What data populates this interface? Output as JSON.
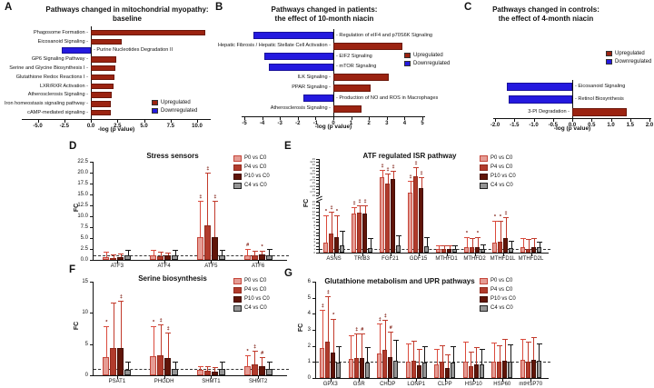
{
  "figure_colors": {
    "upregulated": "#9B2311",
    "downregulated": "#2419DF",
    "series": [
      {
        "name": "P0 vs C0",
        "fill": "#E59C94",
        "border": "#C5463A",
        "err": "#DB4A3C"
      },
      {
        "name": "P4 vs C0",
        "fill": "#B13B2C",
        "border": "#922B1E",
        "err": "#C23A2B"
      },
      {
        "name": "P10 vs C0",
        "fill": "#601509",
        "border": "#430E05",
        "err": "#C23A2B"
      },
      {
        "name": "C4 vs C0",
        "fill": "#959595",
        "border": "#222222",
        "err": "#141414"
      }
    ],
    "sig_marker": "#7A150A"
  },
  "chart_data": [
    {
      "id": "A",
      "panel_letter": "A",
      "type": "bar",
      "orientation": "horizontal",
      "title_lines": [
        "Pathways changed in mitochondrial myopathy:",
        "baseline"
      ],
      "xlabel": "-log (p value)",
      "x_tick_values": [
        -5.0,
        -2.5,
        0.0,
        2.5,
        5.0,
        7.5,
        10.0
      ],
      "x_tick_labels": [
        "-5.0",
        "-2.5",
        "0.0",
        "2.5",
        "5.0",
        "7.5",
        "10.0"
      ],
      "xlim": [
        -6.4,
        11.2
      ],
      "legend": {
        "entries": [
          "Upregulated",
          "Downregulated"
        ]
      },
      "rows": [
        {
          "label": "Phagosome Formation",
          "value": 10.8,
          "direction": "up"
        },
        {
          "label": "Eicosanoid Signaling",
          "value": 2.9,
          "direction": "up"
        },
        {
          "label": "Purine Nucleotides Degradation II",
          "value": -2.7,
          "direction": "down"
        },
        {
          "label": "GP6 Signaling Pathway",
          "value": 2.4,
          "direction": "up"
        },
        {
          "label": "Serine and Glycine Biosynthesis I",
          "value": 2.3,
          "direction": "up"
        },
        {
          "label": "Glutathione Redox Reactions I",
          "value": 2.2,
          "direction": "up"
        },
        {
          "label": "LXR/RXR Activation",
          "value": 2.1,
          "direction": "up"
        },
        {
          "label": "Atherosclerosis Signaling",
          "value": 2.0,
          "direction": "up"
        },
        {
          "label": "Iron homeostasis signaling pathway",
          "value": 1.9,
          "direction": "up"
        },
        {
          "label": "cAMP-mediated signaling",
          "value": 1.9,
          "direction": "up"
        }
      ]
    },
    {
      "id": "B",
      "panel_letter": "B",
      "type": "bar",
      "orientation": "horizontal",
      "title_lines": [
        "Pathways changed in patients:",
        "the effect of 10-month niacin"
      ],
      "xlabel": "-log (p value)",
      "x_tick_values": [
        -5,
        -4,
        -3,
        -2,
        -1,
        0,
        1,
        2,
        3,
        4,
        5
      ],
      "x_tick_labels": [
        "-5",
        "-4",
        "-3",
        "-2",
        "-1",
        "0",
        "1",
        "2",
        "3",
        "4",
        "5"
      ],
      "xlim": [
        -5.2,
        5.2
      ],
      "legend": {
        "entries": [
          "Upregulated",
          "Downregulated"
        ]
      },
      "rows": [
        {
          "label": "Regulation of eIF4 and p70S6K Signaling",
          "value": -4.5,
          "direction": "down"
        },
        {
          "label": "Hepatic Fibrosis / Hepatic Stellate Cell Activation",
          "value": 3.9,
          "direction": "up"
        },
        {
          "label": "EIF2 Signaling",
          "value": -3.9,
          "direction": "down"
        },
        {
          "label": "mTOR Signaling",
          "value": -3.6,
          "direction": "down"
        },
        {
          "label": "ILK Signaling",
          "value": 3.1,
          "direction": "up"
        },
        {
          "label": "PPAR Signaling",
          "value": 2.1,
          "direction": "up"
        },
        {
          "label": "Production of NO and ROS in Macrophages",
          "value": -1.7,
          "direction": "down"
        },
        {
          "label": "Atherosclerosis Signaling",
          "value": 1.6,
          "direction": "up"
        }
      ]
    },
    {
      "id": "C",
      "panel_letter": "C",
      "type": "bar",
      "orientation": "horizontal",
      "title_lines": [
        "Pathways changed in controls:",
        "the effect of 4-month niacin"
      ],
      "xlabel": "-log (p value)",
      "x_tick_values": [
        -2.0,
        -1.5,
        -1.0,
        -0.5,
        0.0,
        0.5,
        1.0,
        1.5,
        2.0
      ],
      "x_tick_labels": [
        "-2.0",
        "-1.5",
        "-1.0",
        "-0.5",
        "0.0",
        "0.5",
        "1.0",
        "1.5",
        "2.0"
      ],
      "xlim": [
        -2.1,
        2.1
      ],
      "legend": {
        "entries": [
          "Upregulated",
          "Downregulated"
        ]
      },
      "rows": [
        {
          "label": "Eicosanoid Signaling",
          "value": -1.7,
          "direction": "down"
        },
        {
          "label": "Retinol Biosynthesis",
          "value": -1.65,
          "direction": "down"
        },
        {
          "label": "3-PI Degradation",
          "value": 1.4,
          "direction": "up"
        }
      ]
    },
    {
      "id": "D",
      "panel_letter": "D",
      "type": "bar",
      "orientation": "vertical-grouped",
      "title": "Stress sensors",
      "ylabel": "FC",
      "categories": [
        "ATF3",
        "ATF4",
        "ATF5",
        "ATF6"
      ],
      "ylim": [
        0,
        22.5
      ],
      "y_tick_values": [
        0,
        2.5,
        5,
        7.5,
        10,
        12.5,
        15,
        17.5,
        20,
        22.5
      ],
      "y_tick_labels": [
        "0.0",
        "2.5",
        "5.0",
        "7.5",
        "10.0",
        "12.5",
        "15.0",
        "17.5",
        "20.0",
        "22.5"
      ],
      "dashed_line_y": 1,
      "legend": {
        "entries": [
          "P0 vs C0",
          "P4 vs C0",
          "P10 vs C0",
          "C4 vs C0"
        ]
      },
      "series": [
        {
          "name": "P0 vs C0",
          "values": [
            0.7,
            1.0,
            5.2,
            1.1
          ],
          "errors": [
            1.9,
            2.2,
            13.5,
            2.4
          ],
          "sig": [
            "",
            "",
            "‡",
            "#"
          ]
        },
        {
          "name": "P4 vs C0",
          "values": [
            0.45,
            0.9,
            7.9,
            1.0
          ],
          "errors": [
            1.2,
            1.9,
            20.0,
            2.1
          ],
          "sig": [
            "",
            "",
            "‡",
            ""
          ]
        },
        {
          "name": "P10 vs C0",
          "values": [
            0.6,
            1.0,
            5.3,
            1.25
          ],
          "errors": [
            1.4,
            1.6,
            13.6,
            2.1
          ],
          "sig": [
            "",
            "",
            "‡",
            "*"
          ]
        },
        {
          "name": "C4 vs C0",
          "values": [
            0.95,
            1.0,
            0.95,
            0.95
          ],
          "errors": [
            2.3,
            2.2,
            2.3,
            2.6
          ],
          "sig": [
            "",
            "",
            "",
            ""
          ]
        }
      ]
    },
    {
      "id": "E",
      "panel_letter": "E",
      "type": "bar",
      "orientation": "vertical-grouped",
      "title": "ATF regulated ISR pathway",
      "ylabel": "FC",
      "categories": [
        "ASNS",
        "TRIB3",
        "FGF21",
        "GDF15",
        "MTHFD1",
        "MTHFD2",
        "MTHFD1L",
        "MTHFD2L"
      ],
      "y_axis": {
        "type": "broken",
        "lower_range": [
          0,
          15
        ],
        "upper_range": [
          15,
          45
        ],
        "lower_ticks": [
          "0",
          "1",
          "2",
          "3",
          "4",
          "5",
          "6",
          "7",
          "8",
          "9",
          "10",
          "11",
          "12",
          "13",
          "14",
          "15"
        ],
        "upper_ticks": [
          "15",
          "17.5",
          "20",
          "22.5",
          "25",
          "27.5",
          "30",
          "32.5",
          "35",
          "37.5",
          "40",
          "42.5",
          "45"
        ]
      },
      "dashed_line_y": 1,
      "legend": {
        "entries": [
          "P0 vs C0",
          "P4 vs C0",
          "P10 vs C0",
          "C4 vs C0"
        ]
      },
      "series": [
        {
          "name": "P0 vs C0",
          "values": [
            3.0,
            11.5,
            30.0,
            17.0,
            1.0,
            1.6,
            3.0,
            1.6
          ],
          "errors": [
            11.0,
            13.5,
            36.0,
            27.0,
            2.2,
            4.5,
            9.5,
            4.4
          ],
          "sig": [
            "*",
            "‡",
            "‡",
            "‡",
            "",
            "*",
            "*",
            ""
          ]
        },
        {
          "name": "P4 vs C0",
          "values": [
            5.5,
            11.8,
            25.0,
            31.0,
            1.0,
            1.5,
            3.1,
            1.2
          ],
          "errors": [
            12.0,
            14.0,
            33.0,
            38.0,
            2.2,
            4.2,
            9.5,
            4.0
          ],
          "sig": [
            "‡",
            "‡",
            "‡",
            "‡",
            "",
            "",
            "*",
            ""
          ]
        },
        {
          "name": "P10 vs C0",
          "values": [
            4.5,
            11.6,
            28.5,
            21.0,
            1.0,
            1.7,
            4.3,
            1.5
          ],
          "errors": [
            11.0,
            14.0,
            35.0,
            30.0,
            2.2,
            4.6,
            10.5,
            4.2
          ],
          "sig": [
            "*",
            "‡",
            "‡",
            "‡",
            "",
            "*",
            "‡",
            ""
          ]
        },
        {
          "name": "C4 vs C0",
          "values": [
            2.2,
            1.3,
            2.1,
            2.0,
            1.0,
            1.1,
            1.3,
            1.5
          ],
          "errors": [
            6.5,
            4.2,
            5.0,
            4.5,
            2.2,
            2.5,
            3.5,
            3.2
          ],
          "sig": [
            "",
            "",
            "",
            "",
            "",
            "",
            "",
            ""
          ]
        }
      ]
    },
    {
      "id": "F",
      "panel_letter": "F",
      "type": "bar",
      "orientation": "vertical-grouped",
      "title": "Serine biosynthesis",
      "ylabel": "FC",
      "categories": [
        "PSAT1",
        "PHGDH",
        "SHMT1",
        "SHMT2"
      ],
      "ylim": [
        0,
        15
      ],
      "y_tick_values": [
        0,
        5,
        10,
        15
      ],
      "y_tick_labels": [
        "0",
        "5",
        "10",
        "15"
      ],
      "dashed_line_y": 1,
      "legend": {
        "entries": [
          "P0 vs C0",
          "P4 vs C0",
          "P10 vs C0",
          "C4 vs C0"
        ]
      },
      "series": [
        {
          "name": "P0 vs C0",
          "values": [
            2.9,
            3.0,
            0.9,
            1.5
          ],
          "errors": [
            7.8,
            7.9,
            1.5,
            3.2
          ],
          "sig": [
            "*",
            "*",
            "",
            "*"
          ]
        },
        {
          "name": "P4 vs C0",
          "values": [
            4.4,
            3.2,
            0.7,
            1.8
          ],
          "errors": [
            11.6,
            8.2,
            1.5,
            3.9
          ],
          "sig": [
            "",
            "‡",
            "",
            "‡"
          ]
        },
        {
          "name": "P10 vs C0",
          "values": [
            4.4,
            2.7,
            0.6,
            1.4
          ],
          "errors": [
            11.9,
            6.9,
            1.3,
            2.9
          ],
          "sig": [
            "‡",
            "‡",
            "",
            "#"
          ]
        },
        {
          "name": "C4 vs C0",
          "values": [
            0.9,
            1.0,
            1.0,
            1.0
          ],
          "errors": [
            2.2,
            2.2,
            2.2,
            2.2
          ],
          "sig": [
            "",
            "",
            "",
            ""
          ]
        }
      ]
    },
    {
      "id": "G",
      "panel_letter": "G",
      "type": "bar",
      "orientation": "vertical-grouped",
      "title": "Glutathione metabolism and UPR pathways",
      "ylabel": "FC",
      "categories": [
        "GPX3",
        "GSR",
        "CHOP",
        "LONP1",
        "CLPP",
        "HSP10",
        "HSP60",
        "mtHSP70"
      ],
      "ylim": [
        0,
        6
      ],
      "y_tick_values": [
        0,
        1,
        2,
        3,
        4,
        5,
        6
      ],
      "y_tick_labels": [
        "0",
        "1",
        "2",
        "3",
        "4",
        "5",
        "6"
      ],
      "dashed_line_y": 1,
      "legend": {
        "entries": [
          "P0 vs C0",
          "P4 vs C0",
          "P10 vs C0",
          "C4 vs C0"
        ]
      },
      "series": [
        {
          "name": "P0 vs C0",
          "values": [
            1.85,
            1.2,
            1.55,
            1.0,
            0.85,
            1.0,
            1.0,
            1.15
          ],
          "errors": [
            4.25,
            2.65,
            3.4,
            2.15,
            1.8,
            2.25,
            2.2,
            2.45
          ],
          "sig": [
            "‡",
            "",
            "‡",
            "",
            "",
            "",
            "",
            ""
          ]
        },
        {
          "name": "P4 vs C0",
          "values": [
            2.25,
            1.25,
            1.75,
            1.05,
            1.0,
            0.75,
            1.0,
            1.0
          ],
          "errors": [
            5.1,
            2.75,
            3.65,
            2.3,
            2.05,
            1.65,
            2.05,
            2.25
          ],
          "sig": [
            "‡",
            "‡",
            "‡",
            "",
            "",
            "",
            "",
            ""
          ]
        },
        {
          "name": "P10 vs C0",
          "values": [
            1.6,
            1.25,
            1.3,
            0.8,
            0.6,
            0.85,
            1.1,
            1.15
          ],
          "errors": [
            3.7,
            2.75,
            2.9,
            1.8,
            1.45,
            1.9,
            2.45,
            2.55
          ],
          "sig": [
            "*",
            "#",
            "#",
            "",
            "",
            "",
            "",
            ""
          ]
        },
        {
          "name": "C4 vs C0",
          "values": [
            0.95,
            0.95,
            1.1,
            0.95,
            0.95,
            0.85,
            1.0,
            1.1
          ],
          "errors": [
            2.0,
            1.95,
            2.4,
            2.0,
            2.0,
            1.8,
            2.1,
            2.15
          ],
          "sig": [
            "",
            "",
            "",
            "",
            "",
            "",
            "",
            ""
          ]
        }
      ]
    }
  ]
}
